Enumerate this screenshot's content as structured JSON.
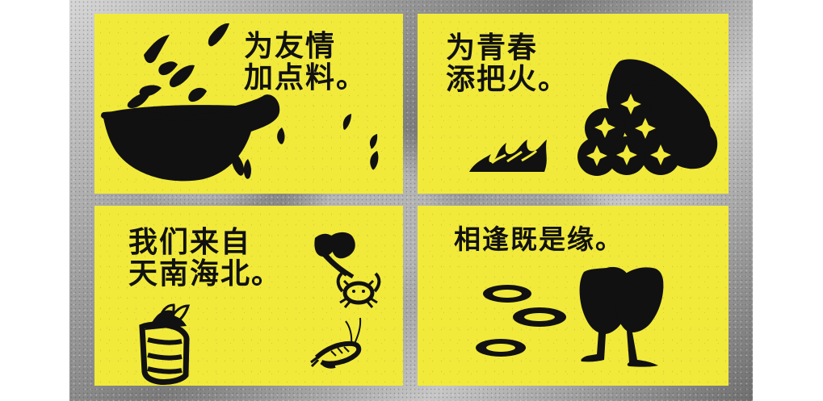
{
  "panels": [
    {
      "id": "friendship",
      "text": "为友情\n加点料。"
    },
    {
      "id": "youth",
      "text": "为青春\n添把火。"
    },
    {
      "id": "origins",
      "text": "我们来自\n天南海北。"
    },
    {
      "id": "fate",
      "text": "相逢既是缘。"
    }
  ],
  "icons": {
    "panel1": [
      "wok-icon",
      "spice-drops-icon"
    ],
    "panel2": [
      "flame-icon",
      "sausage-stack-icon"
    ],
    "panel3": [
      "basket-icon",
      "leafy-vegetable-icon",
      "crab-icon",
      "shrimp-icon"
    ],
    "panel4": [
      "plate-ring-icons",
      "toast-glasses-icon"
    ]
  },
  "colors": {
    "card": "#f1ea3b",
    "ink": "#111111",
    "background_gray": "#8c8c8c"
  }
}
